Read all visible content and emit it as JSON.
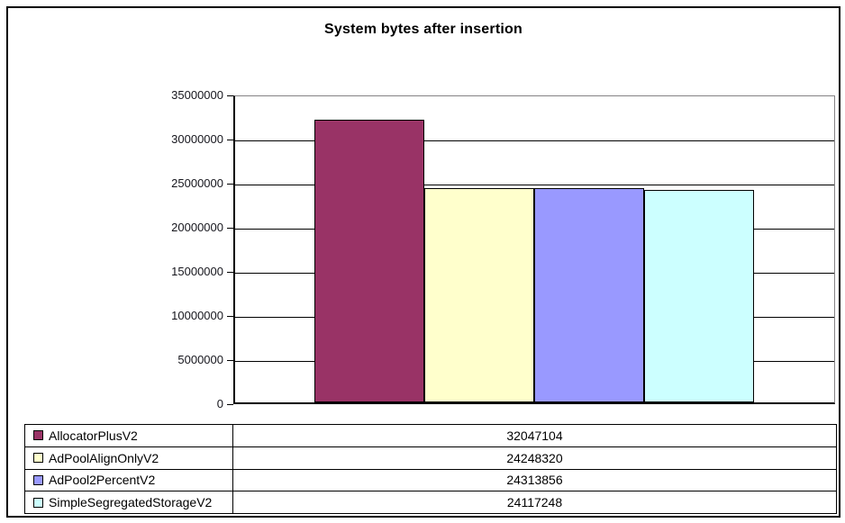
{
  "title": "System bytes after insertion",
  "chart_data": {
    "type": "bar",
    "title": "System bytes after insertion",
    "categories": [
      "System bytes after insertion"
    ],
    "series": [
      {
        "name": "AllocatorPlusV2",
        "values": [
          32047104
        ],
        "color": "#993366"
      },
      {
        "name": "AdPoolAlignOnlyV2",
        "values": [
          24248320
        ],
        "color": "#FFFFCC"
      },
      {
        "name": "AdPool2PercentV2",
        "values": [
          24313856
        ],
        "color": "#9999FF"
      },
      {
        "name": "SimpleSegregatedStorageV2",
        "values": [
          24117248
        ],
        "color": "#CCFFFF"
      }
    ],
    "xlabel": "",
    "ylabel": "",
    "ylim": [
      0,
      35000000
    ],
    "ytick_step": 5000000,
    "ytick_labels": [
      "35000000",
      "30000000",
      "25000000",
      "20000000",
      "15000000",
      "10000000",
      "5000000",
      "0"
    ],
    "grid": true,
    "legend_position": "bottom-data-table"
  },
  "colors": {
    "plot_border": "#848284",
    "gridline": "#000000",
    "axis": "#000000",
    "background": "#ffffff"
  }
}
